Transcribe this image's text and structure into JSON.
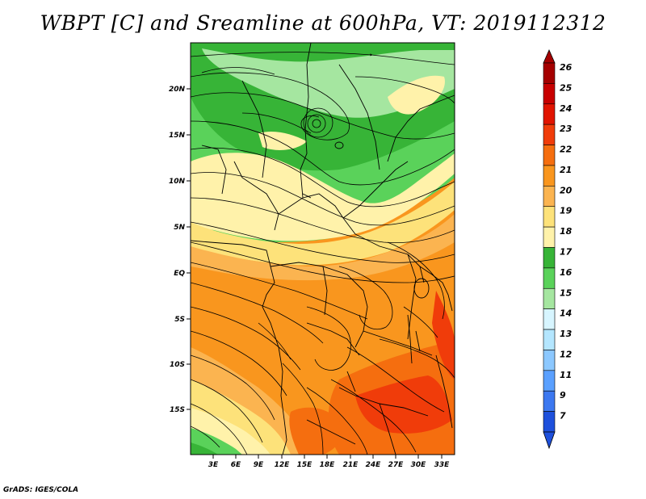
{
  "title": "WBPT [C] and Sreamline at 600hPa, VT: 2019112312",
  "footer": "GrADS: IGES/COLA",
  "lat_labels": [
    "20N",
    "15N",
    "10N",
    "5N",
    "EQ",
    "5S",
    "10S",
    "15S"
  ],
  "lon_labels": [
    "3E",
    "6E",
    "9E",
    "12E",
    "15E",
    "18E",
    "21E",
    "24E",
    "27E",
    "30E",
    "33E"
  ],
  "colorbar": {
    "levels": [
      "26",
      "25",
      "24",
      "23",
      "22",
      "21",
      "20",
      "19",
      "18",
      "17",
      "16",
      "15",
      "14",
      "13",
      "12",
      "11",
      "9",
      "7"
    ],
    "colors": [
      "#a50000",
      "#c80000",
      "#e11400",
      "#f03c0a",
      "#f56e0f",
      "#f9961e",
      "#fbb450",
      "#fde27a",
      "#fff2aa",
      "#37b437",
      "#5ad25a",
      "#a5e6a0",
      "#d7f5ff",
      "#b4e6ff",
      "#8cc8ff",
      "#5aa0ff",
      "#3c78f0",
      "#1e50dc"
    ]
  },
  "map_colors": {
    "green_dark": "#37b437",
    "green_mid": "#5ad25a",
    "green_light": "#a5e6a0",
    "pale_yellow": "#fff2aa",
    "yellow": "#fde27a",
    "light_orange": "#fbb450",
    "orange": "#f9961e",
    "dark_orange": "#f56e0f",
    "red_orange": "#f03c0a"
  }
}
